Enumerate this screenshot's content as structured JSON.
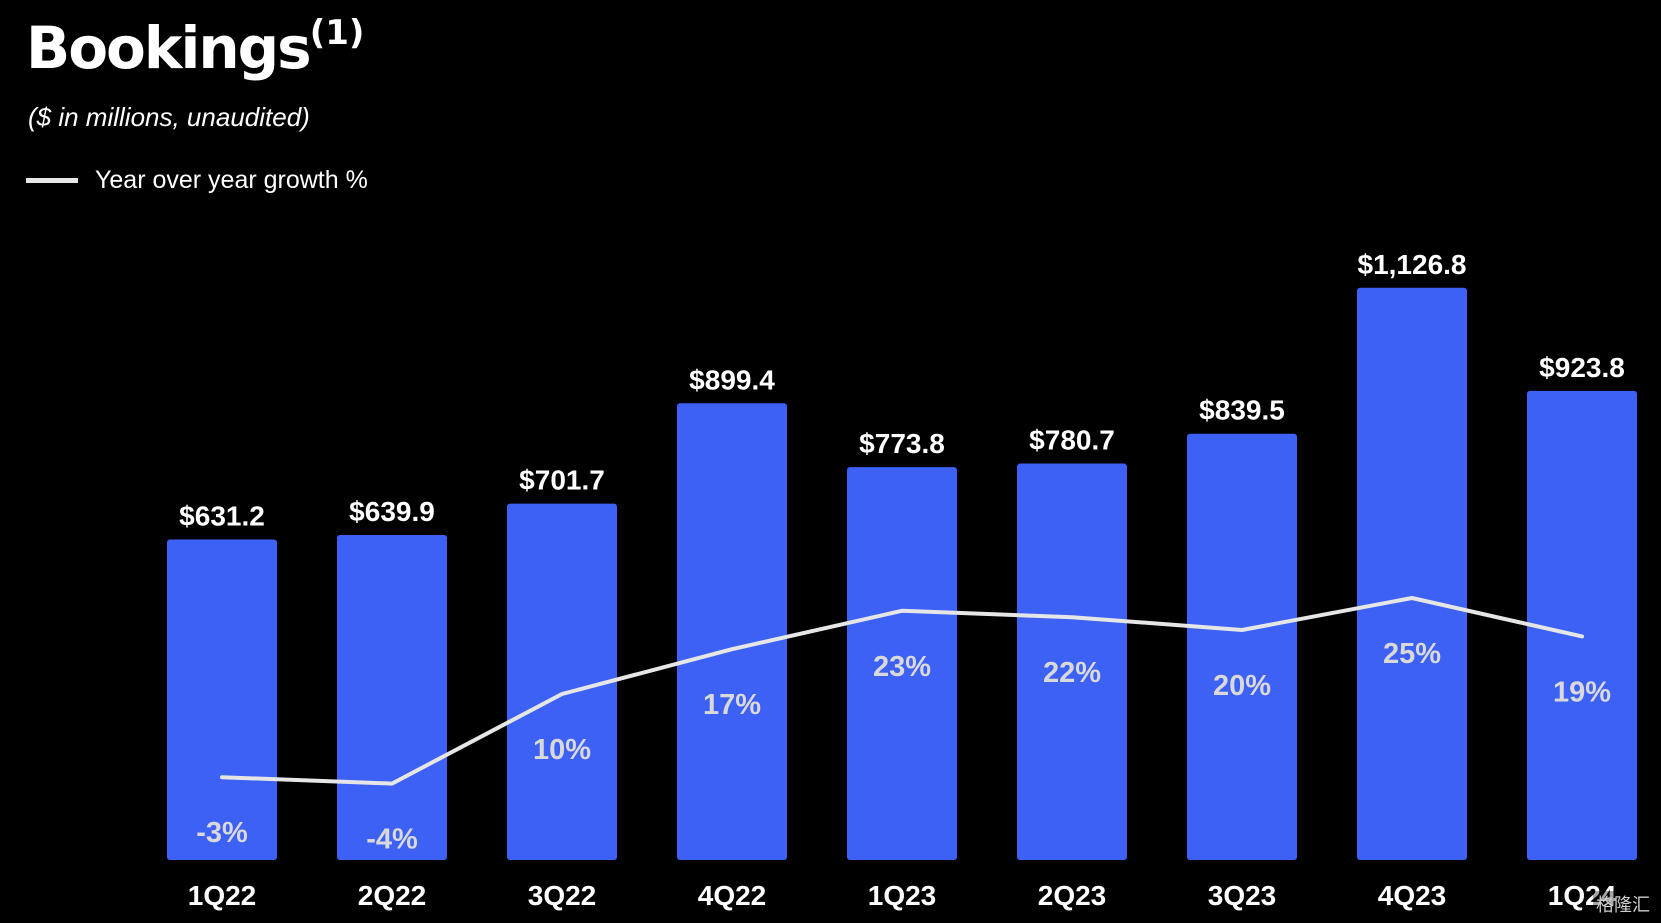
{
  "title": "Bookings",
  "title_footnote": "(1)",
  "subtitle": "($ in millions, unaudited)",
  "legend": {
    "growth_label": "Year over year growth %"
  },
  "colors": {
    "background": "#000000",
    "bar": "#3d61f5",
    "line": "#e6e6e6",
    "text": "#ffffff",
    "inner_label": "#d9d9d9"
  },
  "chart_data": {
    "type": "bar",
    "title": "Bookings",
    "subtitle": "($ in millions, unaudited)",
    "categories": [
      "1Q22",
      "2Q22",
      "3Q22",
      "4Q22",
      "1Q23",
      "2Q23",
      "3Q23",
      "4Q23",
      "1Q24"
    ],
    "series": [
      {
        "name": "Bookings",
        "values": [
          631.2,
          639.9,
          701.7,
          899.4,
          773.8,
          780.7,
          839.5,
          1126.8,
          923.8
        ],
        "value_labels": [
          "$631.2",
          "$639.9",
          "$701.7",
          "$899.4",
          "$773.8",
          "$780.7",
          "$839.5",
          "$1,126.8",
          "$923.8"
        ]
      },
      {
        "name": "Year over year growth %",
        "type": "line",
        "values": [
          -3,
          -4,
          10,
          17,
          23,
          22,
          20,
          25,
          19
        ],
        "value_labels": [
          "-3%",
          "-4%",
          "10%",
          "17%",
          "23%",
          "22%",
          "20%",
          "25%",
          "19%"
        ]
      }
    ],
    "xlabel": "",
    "ylabel": "",
    "grid": false,
    "legend_position": "top-left"
  },
  "watermark": "格隆汇"
}
